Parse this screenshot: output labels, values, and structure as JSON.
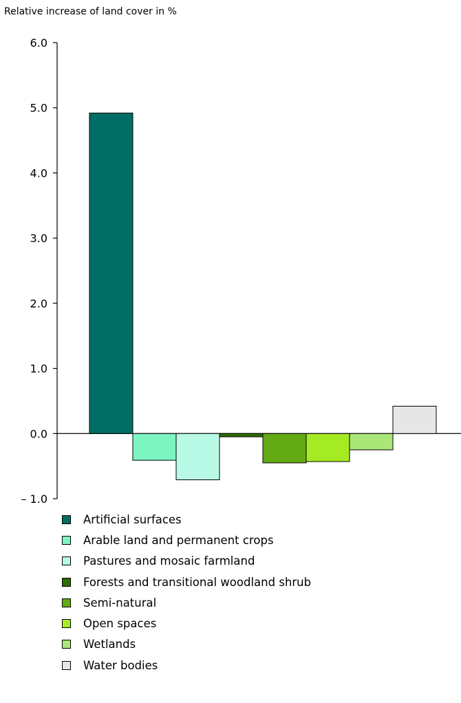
{
  "chart_data": {
    "type": "bar",
    "ylabel": "Relative increase of land cover in %",
    "ylim": [
      -1.0,
      6.0
    ],
    "yticks": [
      "6.0",
      "5.0",
      "4.0",
      "3.0",
      "2.0",
      "1.0",
      "0.0",
      "– 1.0"
    ],
    "tick_values": [
      6,
      5,
      4,
      3,
      2,
      1,
      0,
      -1
    ],
    "grid": false,
    "legend_position": "bottom",
    "categories": [
      "Artificial surfaces",
      "Arable land and permanent crops",
      "Pastures and mosaic farmland",
      "Forests and transitional woodland shrub",
      "Semi-natural",
      "Open spaces",
      "Wetlands",
      "Water bodies"
    ],
    "values": [
      4.92,
      -0.41,
      -0.71,
      -0.05,
      -0.45,
      -0.43,
      -0.25,
      0.42
    ],
    "colors": [
      "#006E64",
      "#7DF5C3",
      "#B9FAE6",
      "#2D6E00",
      "#64AA14",
      "#A5EB23",
      "#AAE678",
      "#E6E6E6"
    ]
  }
}
